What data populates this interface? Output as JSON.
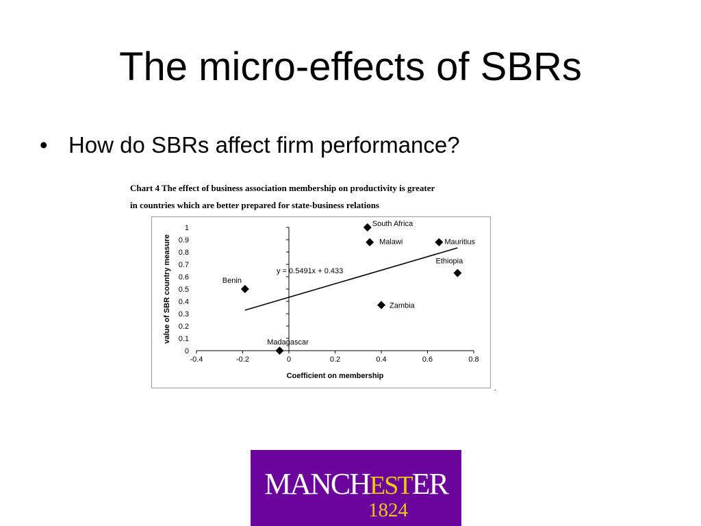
{
  "slide": {
    "title": "The micro-effects of SBRs",
    "bullet_glyph": "•",
    "bullet_text": "How do SBRs affect firm performance?",
    "stray_mark": "."
  },
  "caption": {
    "line1": "Chart 4 The effect of business association membership on productivity is greater",
    "line2": "in countries which are better prepared for state-business relations"
  },
  "chart_data": {
    "type": "scatter",
    "title": "Chart 4 The effect of business association membership on productivity is greater in countries which are better prepared for state-business relations",
    "xlabel": "Coefficient on membership",
    "ylabel": "value of SBR country measure",
    "xlim": [
      -0.4,
      0.8
    ],
    "ylim": [
      0,
      1
    ],
    "x_ticks": [
      -0.4,
      -0.2,
      0,
      0.2,
      0.4,
      0.6,
      0.8
    ],
    "x_tick_labels": [
      "-0.4",
      "-0.2",
      "0",
      "0.2",
      "0.4",
      "0.6",
      "0.8"
    ],
    "y_ticks": [
      0,
      0.1,
      0.2,
      0.3,
      0.4,
      0.5,
      0.6,
      0.7,
      0.8,
      0.9,
      1
    ],
    "y_tick_labels": [
      "0",
      "0.1",
      "0.2",
      "0.3",
      "0.4",
      "0.5",
      "0.6",
      "0.7",
      "0.8",
      "0.9",
      "1"
    ],
    "grid": false,
    "marker": "diamond",
    "points": [
      {
        "label": "South Africa",
        "x": 0.34,
        "y": 1.0
      },
      {
        "label": "Malawi",
        "x": 0.35,
        "y": 0.88
      },
      {
        "label": "Mauritius",
        "x": 0.65,
        "y": 0.88
      },
      {
        "label": "Ethiopia",
        "x": 0.73,
        "y": 0.63
      },
      {
        "label": "Benin",
        "x": -0.19,
        "y": 0.5
      },
      {
        "label": "Zambia",
        "x": 0.4,
        "y": 0.37
      },
      {
        "label": "Madagascar",
        "x": -0.04,
        "y": 0.0
      }
    ],
    "trendline": {
      "equation": "y = 0.5491x + 0.433",
      "slope": 0.5491,
      "intercept": 0.433,
      "x_range": [
        -0.19,
        0.73
      ]
    }
  },
  "logo": {
    "text_a": "MANCH",
    "text_b": "EST",
    "text_c": "ER",
    "year": "1824",
    "background": "#6a049a",
    "accent": "#f0c814"
  }
}
